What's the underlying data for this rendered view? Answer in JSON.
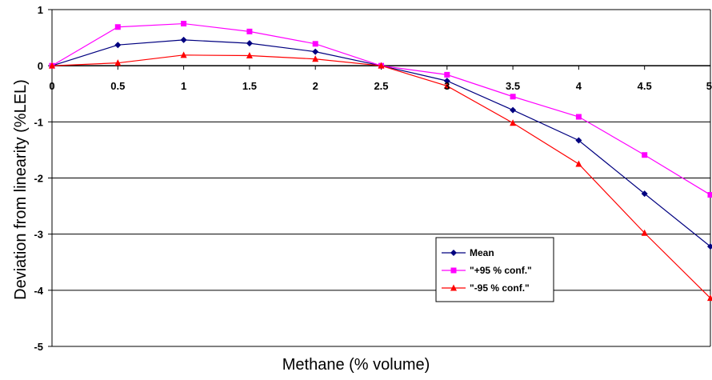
{
  "chart_data": {
    "type": "line",
    "title": "",
    "xlabel": "Methane (% volume)",
    "ylabel": "Deviation from linearity (%LEL)",
    "xlim": [
      0,
      5
    ],
    "ylim": [
      -5,
      1
    ],
    "x_ticks": [
      "0",
      "0.5",
      "1",
      "1.5",
      "2",
      "2.5",
      "3",
      "3.5",
      "4",
      "4.5",
      "5"
    ],
    "y_ticks": [
      "1",
      "0",
      "-1",
      "-2",
      "-3",
      "-4",
      "-5"
    ],
    "grid": "horizontal",
    "legend_position": "inside-lower-center-right",
    "x": [
      0,
      0.5,
      1,
      1.5,
      2,
      2.5,
      3,
      3.5,
      4,
      4.5,
      5
    ],
    "series": [
      {
        "name": "Mean",
        "color": "#000080",
        "marker": "diamond",
        "values": [
          0,
          0.37,
          0.46,
          0.4,
          0.25,
          0,
          -0.27,
          -0.79,
          -1.33,
          -2.28,
          -3.22
        ]
      },
      {
        "name": "\"+95 % conf.\"",
        "color": "#ff00ff",
        "marker": "square",
        "values": [
          0,
          0.69,
          0.75,
          0.61,
          0.39,
          0,
          -0.16,
          -0.55,
          -0.91,
          -1.59,
          -2.3
        ]
      },
      {
        "name": "\"-95 % conf.\"",
        "color": "#ff0000",
        "marker": "triangle",
        "values": [
          0,
          0.05,
          0.19,
          0.18,
          0.12,
          0,
          -0.36,
          -1.02,
          -1.75,
          -2.98,
          -4.14
        ]
      }
    ]
  }
}
